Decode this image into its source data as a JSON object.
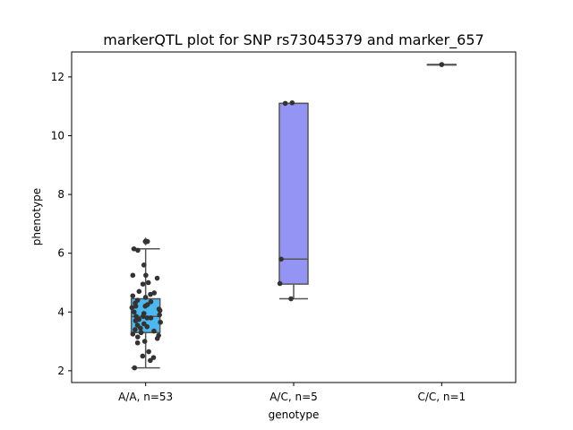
{
  "chart_data": {
    "type": "box",
    "title": "markerQTL plot for SNP rs73045379 and marker_657",
    "xlabel": "genotype",
    "ylabel": "phenotype",
    "ylim": [
      1.6,
      12.85
    ],
    "yticks": [
      2,
      4,
      6,
      8,
      10,
      12
    ],
    "categories": [
      "A/A, n=53",
      "A/C, n=5",
      "C/C, n=1"
    ],
    "box_colors": [
      "#4db8f0",
      "#9494f5",
      "#f2a0a0"
    ],
    "line_color": "#555555",
    "point_color": "#333333",
    "boxes": [
      {
        "q1": 3.3,
        "median": 3.85,
        "q3": 4.45,
        "whisker_low": 2.1,
        "whisker_high": 6.15,
        "fliers": [
          6.4
        ]
      },
      {
        "q1": 4.95,
        "median": 5.8,
        "q3": 11.1,
        "whisker_low": 4.45,
        "whisker_high": 11.1,
        "fliers": []
      },
      {
        "q1": 12.42,
        "median": 12.42,
        "q3": 12.42,
        "whisker_low": 12.42,
        "whisker_high": 12.42,
        "fliers": []
      }
    ],
    "points": [
      {
        "category": 0,
        "y": [
          6.4,
          6.4,
          6.15,
          6.1,
          5.6,
          5.25,
          5.25,
          5.15,
          5.0,
          4.95,
          4.7,
          4.65,
          4.6,
          4.55,
          4.5,
          4.4,
          4.35,
          4.3,
          4.25,
          4.2,
          4.2,
          4.15,
          4.1,
          4.05,
          4.0,
          3.95,
          3.9,
          3.85,
          3.85,
          3.8,
          3.8,
          3.75,
          3.7,
          3.65,
          3.6,
          3.55,
          3.5,
          3.45,
          3.4,
          3.35,
          3.3,
          3.3,
          3.25,
          3.2,
          3.15,
          3.1,
          3.0,
          2.95,
          2.65,
          2.5,
          2.45,
          2.35,
          2.1
        ]
      },
      {
        "category": 1,
        "y": [
          11.1,
          11.12,
          5.8,
          4.97,
          4.45
        ]
      },
      {
        "category": 2,
        "y": [
          12.42
        ]
      }
    ]
  }
}
